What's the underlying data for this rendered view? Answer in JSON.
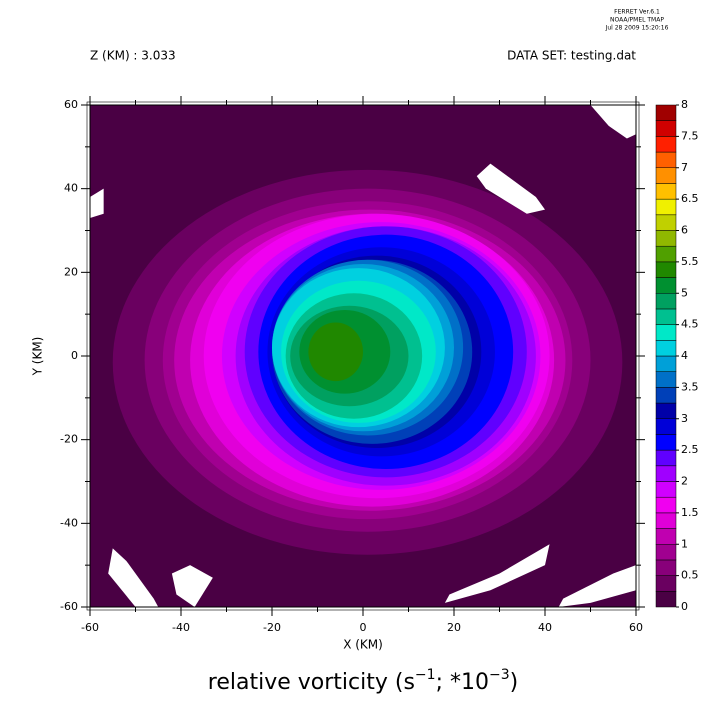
{
  "chart_data": {
    "type": "contour",
    "header": [
      "FERRET  Ver.6.1",
      "NOAA/PMEL TMAP",
      "Jul 28 2009 15:20:16"
    ],
    "subtitle_left": "Z (KM) : 3.033",
    "subtitle_right": "DATA SET: testing.dat",
    "title": [
      "relative vorticity (s",
      "−1",
      "; *10",
      "−3",
      ")"
    ],
    "x_label": "X (KM)",
    "y_label": "Y (KM)",
    "xlim": [
      -60,
      60
    ],
    "ylim": [
      -60,
      60
    ],
    "xticks": [
      -60,
      -40,
      -20,
      0,
      20,
      40,
      60
    ],
    "yticks": [
      -60,
      -40,
      -20,
      0,
      20,
      40,
      60
    ],
    "xminorticks": [
      -50,
      -30,
      -10,
      10,
      30,
      50
    ],
    "yminorticks": [
      -50,
      -30,
      -10,
      10,
      30,
      50
    ],
    "colorbar": {
      "levels": [
        0,
        0.25,
        0.5,
        0.75,
        1,
        1.25,
        1.5,
        1.75,
        2,
        2.25,
        2.5,
        2.75,
        3,
        3.25,
        3.5,
        3.75,
        4,
        4.25,
        4.5,
        4.75,
        5,
        5.25,
        5.5,
        5.75,
        6,
        6.25,
        6.5,
        6.75,
        7,
        7.25,
        7.5,
        7.75,
        8
      ],
      "colors": [
        "#4a0044",
        "#6a0060",
        "#88007a",
        "#a00090",
        "#c000b0",
        "#e000d8",
        "#f000f0",
        "#d000ff",
        "#a000ff",
        "#6000ff",
        "#0000ff",
        "#0000d8",
        "#0000a8",
        "#0040b8",
        "#0070c8",
        "#00a0d8",
        "#00d0e0",
        "#00e8c8",
        "#00c090",
        "#00a060",
        "#009030",
        "#208800",
        "#50a000",
        "#90b800",
        "#c0d000",
        "#f0f000",
        "#ffc000",
        "#ff9000",
        "#ff6000",
        "#ff2000",
        "#d00000",
        "#a00000"
      ],
      "ticks": [
        0,
        0.5,
        1,
        1.5,
        2,
        2.5,
        3,
        3.5,
        4,
        4.5,
        5,
        5.5,
        6,
        6.5,
        7,
        7.5,
        8
      ]
    },
    "contours": [
      {
        "level": 0.25,
        "cx": 1,
        "cy": -1.5,
        "rx": 56,
        "ry": 46
      },
      {
        "level": 0.5,
        "cx": 1,
        "cy": -1,
        "rx": 49,
        "ry": 41
      },
      {
        "level": 0.75,
        "cx": 1,
        "cy": -1,
        "rx": 45,
        "ry": 38
      },
      {
        "level": 1,
        "cx": 1.5,
        "cy": -1,
        "rx": 43,
        "ry": 36
      },
      {
        "level": 1.25,
        "cx": 2,
        "cy": -1,
        "rx": 40,
        "ry": 35
      },
      {
        "level": 1.5,
        "cx": 3,
        "cy": 0,
        "rx": 38,
        "ry": 34
      },
      {
        "level": 1.75,
        "cx": 4,
        "cy": 0,
        "rx": 35,
        "ry": 32
      },
      {
        "level": 2,
        "cx": 5,
        "cy": 0,
        "rx": 33,
        "ry": 31
      },
      {
        "level": 2.25,
        "cx": 5,
        "cy": 1,
        "rx": 31,
        "ry": 30
      },
      {
        "level": 2.5,
        "cx": 5,
        "cy": 1,
        "rx": 28,
        "ry": 28
      },
      {
        "level": 2.75,
        "cx": 4,
        "cy": 1,
        "rx": 25,
        "ry": 25
      },
      {
        "level": 3,
        "cx": 3,
        "cy": 1,
        "rx": 23,
        "ry": 23
      },
      {
        "level": 3.25,
        "cx": 2,
        "cy": 1,
        "rx": 22,
        "ry": 22
      },
      {
        "level": 3.5,
        "cx": 1,
        "cy": 2,
        "rx": 21,
        "ry": 21
      },
      {
        "level": 3.75,
        "cx": 0,
        "cy": 2,
        "rx": 20,
        "ry": 20
      },
      {
        "level": 4,
        "cx": -1,
        "cy": 2,
        "rx": 19,
        "ry": 19
      },
      {
        "level": 4.25,
        "cx": -1,
        "cy": 1,
        "rx": 17,
        "ry": 17
      },
      {
        "level": 4.5,
        "cx": -2,
        "cy": 0,
        "rx": 15,
        "ry": 15
      },
      {
        "level": 4.75,
        "cx": -3,
        "cy": 0,
        "rx": 13,
        "ry": 12
      },
      {
        "level": 5,
        "cx": -4,
        "cy": 1,
        "rx": 10,
        "ry": 10
      },
      {
        "level": 5.25,
        "cx": -6,
        "cy": 1,
        "rx": 6,
        "ry": 7
      }
    ],
    "missing": [
      {
        "x": [
          50,
          54,
          58,
          60,
          60,
          50
        ],
        "y": [
          60,
          55,
          52,
          53,
          60,
          60
        ]
      },
      {
        "x": [
          25,
          28,
          38,
          40,
          36,
          27
        ],
        "y": [
          43,
          46,
          38,
          35,
          34,
          40
        ]
      },
      {
        "x": [
          -60,
          -57,
          -57,
          -60
        ],
        "y": [
          38,
          40,
          34,
          33
        ]
      },
      {
        "x": [
          -55,
          -52,
          -46,
          -45,
          -50,
          -56
        ],
        "y": [
          -46,
          -49,
          -58,
          -60,
          -60,
          -52
        ]
      },
      {
        "x": [
          -42,
          -38,
          -33,
          -37,
          -41
        ],
        "y": [
          -52,
          -50,
          -53,
          -60,
          -57
        ]
      },
      {
        "x": [
          19,
          30,
          41,
          40,
          28,
          18
        ],
        "y": [
          -57,
          -52,
          -45,
          -50,
          -56,
          -59
        ]
      },
      {
        "x": [
          44,
          55,
          60,
          60,
          50,
          43
        ],
        "y": [
          -58,
          -52,
          -50,
          -56,
          -59,
          -60
        ]
      }
    ]
  }
}
